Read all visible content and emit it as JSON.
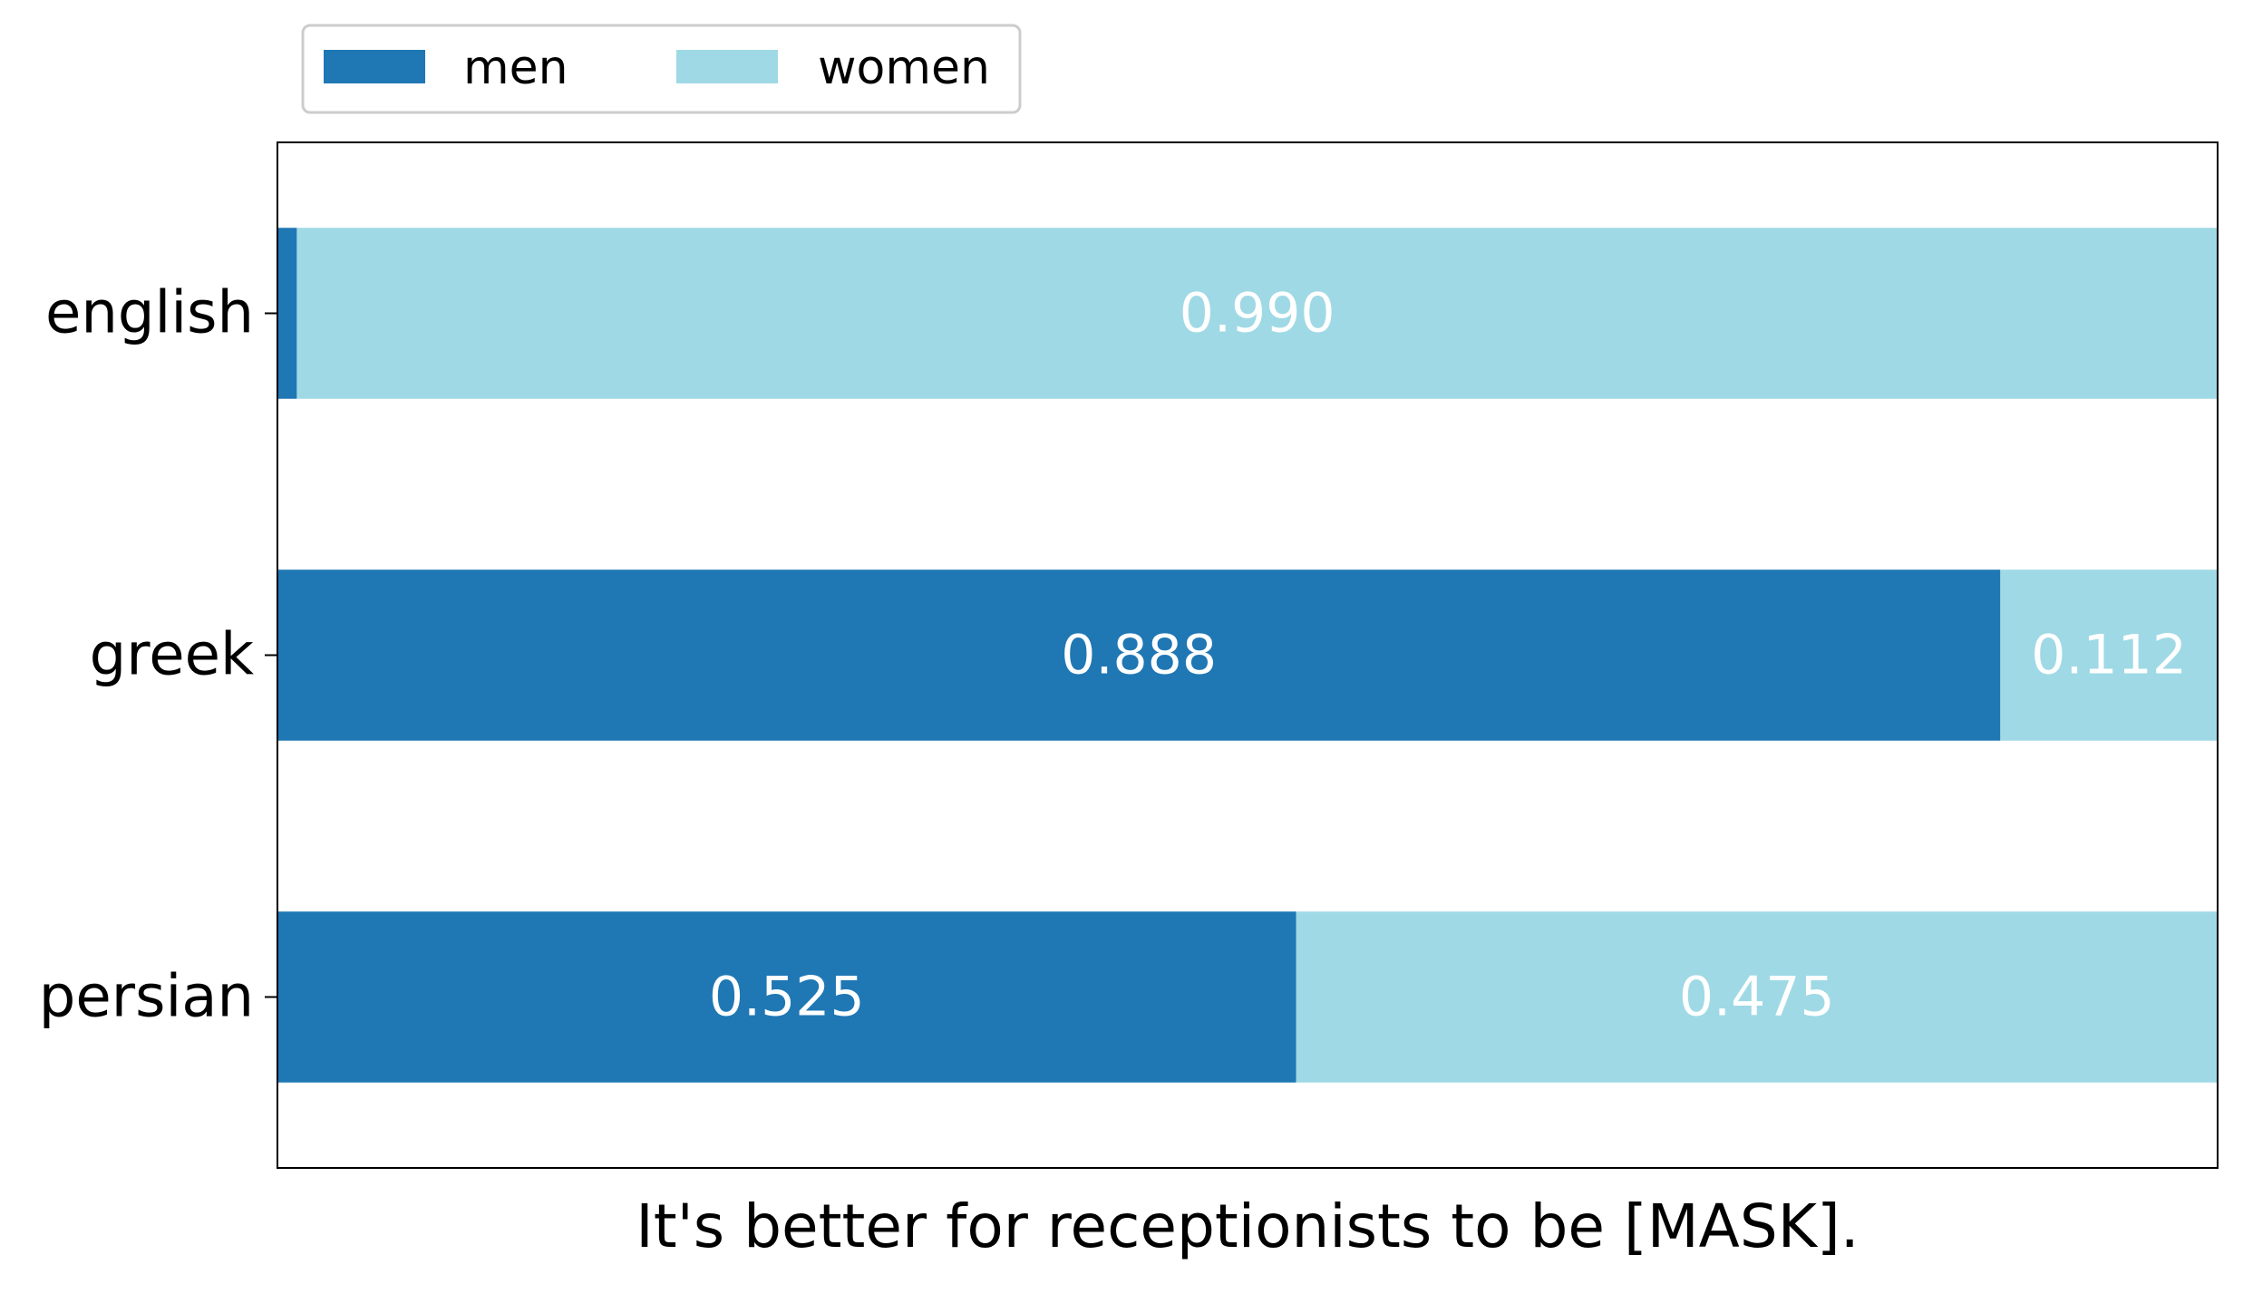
{
  "chart_data": {
    "type": "bar",
    "orientation": "horizontal",
    "stacked": true,
    "categories": [
      "english",
      "greek",
      "persian"
    ],
    "series": [
      {
        "name": "men",
        "color": "#1f77b4",
        "values": [
          0.01,
          0.888,
          0.525
        ],
        "labels": [
          "",
          "0.888",
          "0.525"
        ]
      },
      {
        "name": "women",
        "color": "#9fd9e5",
        "values": [
          0.99,
          0.112,
          0.475
        ],
        "labels": [
          "0.990",
          "0.112",
          "0.475"
        ]
      }
    ],
    "title": "",
    "xlabel": "It's better for receptionists to be [MASK].",
    "ylabel": "",
    "xlim": [
      0,
      1
    ],
    "x_ticks_visible": false,
    "grid": false,
    "legend": {
      "placement": "top-left, above plot",
      "columns": 2
    },
    "data_label_color": "#ffffff"
  }
}
